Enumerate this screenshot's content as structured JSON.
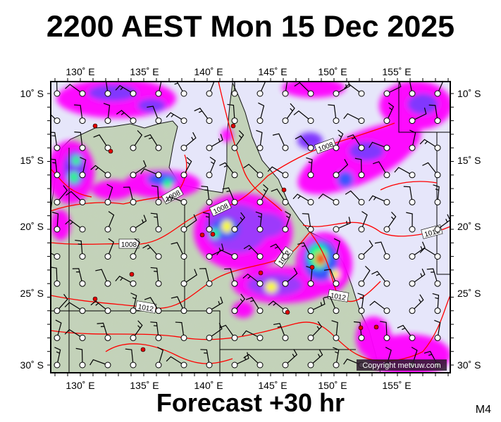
{
  "title": "2200 AEST Mon 15 Dec 2025",
  "footer": "Forecast +30 hr",
  "model_tag": "M4",
  "copyright": "Copyright metvuw.com",
  "lon_labels": [
    "130˚ E",
    "135˚ E",
    "140˚ E",
    "145˚ E",
    "150˚ E",
    "155˚ E"
  ],
  "lat_labels": [
    "10˚ S",
    "15˚ S",
    "20˚ S",
    "25˚ S",
    "30˚ S"
  ],
  "isobar_labels": [
    "1008",
    "1008",
    "1008",
    "1008",
    "1012",
    "1012",
    "1012",
    "1012"
  ],
  "colors": {
    "ocean": "#e6e6fa",
    "land": "#c3d3b8",
    "isobar": "#ff0000",
    "rain_light": "#ff00ff",
    "rain_moderate": "#9b30ff",
    "rain_heavy": "#0000ff",
    "rain_very_heavy": "#00ff00",
    "rain_extreme": "#ff4500"
  }
}
